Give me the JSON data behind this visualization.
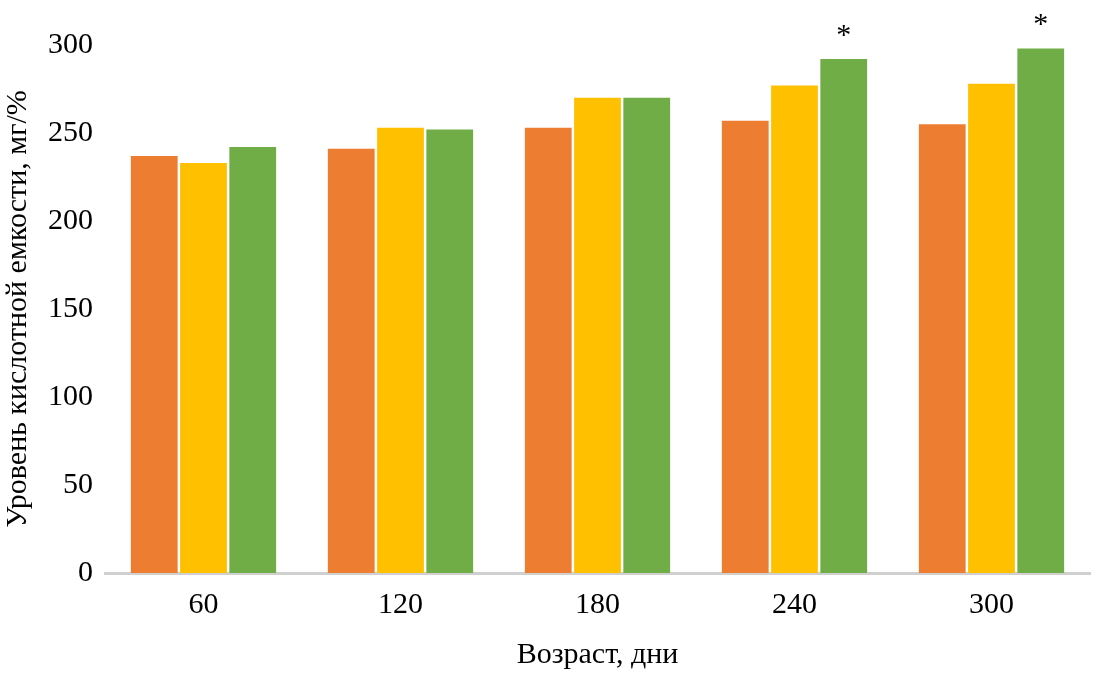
{
  "chart_data": {
    "type": "bar",
    "xlabel": "Возраст, дни",
    "ylabel": "Уровень кислотной емкости, мг/%",
    "categories": [
      "60",
      "120",
      "180",
      "240",
      "300"
    ],
    "series": [
      {
        "color": "#ed7d31",
        "values": [
          237,
          241,
          253,
          257,
          255
        ]
      },
      {
        "color": "#ffc000",
        "values": [
          233,
          253,
          270,
          277,
          278
        ]
      },
      {
        "color": "#70ad47",
        "values": [
          242,
          252,
          270,
          292,
          298
        ]
      }
    ],
    "ylim": [
      0,
      300
    ],
    "yticks": [
      0,
      50,
      100,
      150,
      200,
      250,
      300
    ],
    "grid": false,
    "legend": false,
    "annotations": [
      "*",
      "*"
    ]
  }
}
